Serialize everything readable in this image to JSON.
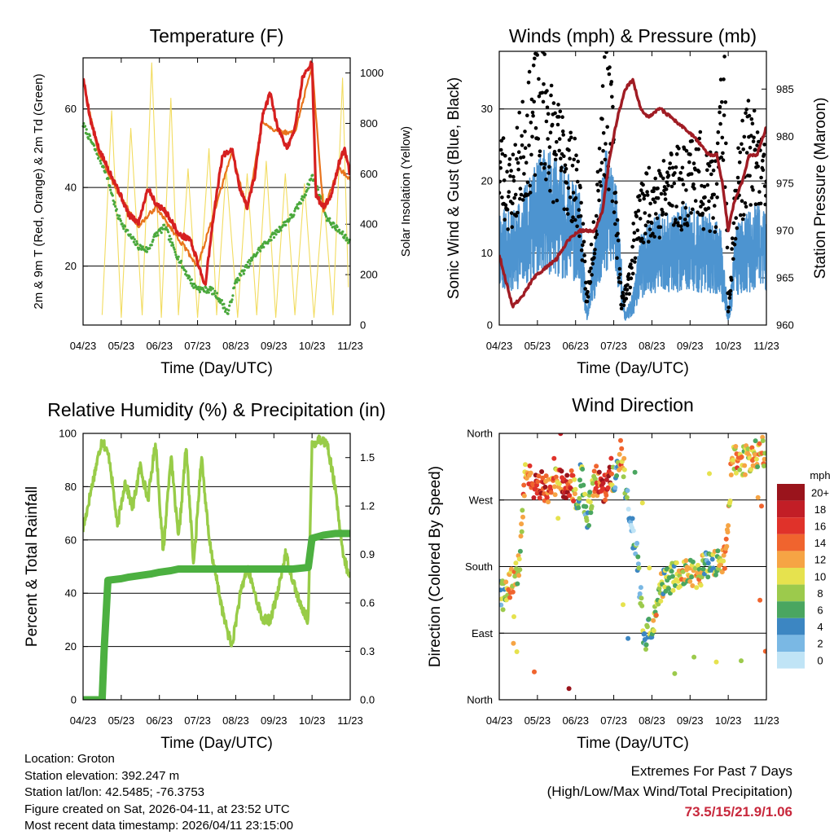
{
  "colors": {
    "temp_2m": "#d62020",
    "temp_9m": "#e8741c",
    "dewpoint": "#4aa83c",
    "solar": "#f2dc60",
    "wind": "#4d94d0",
    "gust": "#000000",
    "pressure": "#a01c24",
    "rh": "#98cc48",
    "precip": "#4cb040",
    "extremes_text": "#c8283c"
  },
  "x_ticks": [
    "04/23",
    "05/23",
    "06/23",
    "07/23",
    "08/23",
    "09/23",
    "10/23",
    "11/23"
  ],
  "info": {
    "location": "Location: Groton",
    "elevation": "Station elevation: 392.247 m",
    "latlon": "Station lat/lon: 42.5485; -76.3753",
    "created": "Figure created on Sat, 2026-04-11, at 23:52 UTC",
    "timestamp": "Most recent data timestamp: 2026/04/11 23:15:00"
  },
  "extremes": {
    "title": "Extremes For Past 7 Days",
    "subtitle": "(High/Low/Max Wind/Total Precipitation)",
    "values": "73.5/15/21.9/1.06"
  },
  "chart_data": [
    {
      "type": "line",
      "title": "Temperature (F)",
      "xlabel": "Time (Day/UTC)",
      "ylabel": "2m & 9m T (Red, Orange) & 2m Td (Green)",
      "ylabel_right": "Solar Insolation (Yellow)",
      "ylim": [
        5,
        73
      ],
      "yticks": [
        20,
        40,
        60
      ],
      "ylim_right": [
        0,
        1060
      ],
      "yticks_right": [
        0,
        200,
        400,
        600,
        800,
        1000
      ],
      "x_range": [
        0,
        7
      ],
      "series": [
        {
          "name": "2m T",
          "color": "#d62020",
          "x": [
            0,
            0.2,
            0.4,
            0.6,
            0.9,
            1.2,
            1.45,
            1.7,
            1.9,
            2.15,
            2.35,
            2.5,
            2.8,
            3.0,
            3.2,
            3.45,
            3.65,
            3.9,
            4.1,
            4.3,
            4.5,
            4.7,
            4.9,
            5.1,
            5.35,
            5.55,
            5.75,
            6.0,
            6.1,
            6.3,
            6.5,
            6.7,
            6.85,
            7.0
          ],
          "values": [
            68,
            57,
            50,
            46,
            40,
            33,
            31,
            40,
            36,
            34,
            31,
            28,
            27,
            21,
            15,
            35,
            48,
            50,
            40,
            35,
            43,
            58,
            64,
            55,
            50,
            55,
            68,
            72,
            38,
            35,
            38,
            46,
            50,
            43
          ]
        },
        {
          "name": "9m T",
          "color": "#e8741c",
          "x": [
            0,
            0.4,
            0.9,
            1.45,
            1.9,
            2.5,
            3.0,
            3.45,
            3.9,
            4.3,
            4.7,
            5.1,
            5.55,
            6.0,
            6.3,
            6.7,
            7.0
          ],
          "values": [
            67,
            49,
            39,
            30,
            35,
            27,
            20,
            34,
            49,
            34,
            57,
            54,
            54,
            71,
            34,
            45,
            42
          ]
        },
        {
          "name": "2m Td",
          "color": "#4aa83c",
          "x": [
            0,
            0.2,
            0.4,
            0.6,
            0.9,
            1.2,
            1.45,
            1.7,
            1.9,
            2.15,
            2.35,
            2.6,
            2.9,
            3.1,
            3.35,
            3.55,
            3.8,
            4.0,
            4.3,
            4.6,
            4.9,
            5.2,
            5.5,
            5.8,
            6.0,
            6.2,
            6.4,
            6.6,
            6.8,
            7.0
          ],
          "values": [
            56,
            52,
            48,
            44,
            33,
            28,
            25,
            24,
            28,
            30,
            25,
            20,
            15,
            14,
            14,
            12,
            8,
            16,
            20,
            24,
            27,
            30,
            33,
            38,
            43,
            38,
            32,
            30,
            28,
            26
          ]
        },
        {
          "name": "Solar Insolation",
          "axis": "right",
          "color": "#f2dc60",
          "x": [
            0.5,
            0.75,
            1.0,
            1.25,
            1.55,
            1.8,
            2.05,
            2.3,
            2.5,
            2.75,
            3.0,
            3.3,
            3.5,
            3.75,
            4.05,
            4.3,
            4.55,
            4.8,
            5.05,
            5.3,
            5.55,
            5.8,
            6.05,
            6.3,
            6.55,
            6.8,
            6.95
          ],
          "values": [
            40,
            850,
            30,
            780,
            40,
            1040,
            30,
            900,
            40,
            620,
            30,
            700,
            40,
            620,
            30,
            600,
            40,
            650,
            30,
            600,
            40,
            560,
            30,
            520,
            40,
            980,
            150
          ]
        }
      ]
    },
    {
      "type": "scatter",
      "title": "Winds (mph) & Pressure (mb)",
      "xlabel": "Time (Day/UTC)",
      "ylabel": "Sonic Wind & Gust (Blue, Black)",
      "ylabel_right": "Station Pressure (Maroon)",
      "ylim": [
        0,
        38
      ],
      "yticks": [
        0,
        10,
        20,
        30
      ],
      "ylim_right": [
        960,
        989
      ],
      "yticks_right": [
        960,
        965,
        970,
        975,
        980,
        985
      ],
      "x_range": [
        0,
        7
      ],
      "series": [
        {
          "name": "Sonic Wind",
          "color": "#4d94d0",
          "x": [
            0,
            0.3,
            0.6,
            0.9,
            1.2,
            1.5,
            1.8,
            2.1,
            2.3,
            2.5,
            2.8,
            3.05,
            3.3,
            3.5,
            3.7,
            3.9,
            4.1,
            4.3,
            4.6,
            4.9,
            5.2,
            5.5,
            5.8,
            6.0,
            6.2,
            6.5,
            6.8,
            7.0
          ],
          "values": [
            11,
            10,
            12,
            14,
            16,
            15,
            14,
            12,
            1,
            8,
            16,
            14,
            1,
            3,
            8,
            9,
            10,
            10,
            10,
            11,
            10,
            10,
            9,
            1,
            9,
            10,
            11,
            10
          ]
        },
        {
          "name": "Gust",
          "color": "#000000",
          "x": [
            0,
            0.3,
            0.6,
            0.9,
            1.1,
            1.3,
            1.5,
            1.8,
            2.1,
            2.3,
            2.5,
            2.75,
            2.95,
            3.2,
            3.4,
            3.6,
            3.8,
            4.0,
            4.25,
            4.5,
            4.8,
            5.1,
            5.4,
            5.7,
            5.9,
            6.0,
            6.2,
            6.5,
            6.8,
            7.0
          ],
          "values": [
            22,
            18,
            24,
            28,
            32,
            27,
            24,
            22,
            18,
            3,
            14,
            30,
            26,
            3,
            6,
            14,
            16,
            18,
            17,
            20,
            19,
            22,
            19,
            18,
            33,
            2,
            18,
            24,
            22,
            19
          ]
        },
        {
          "name": "Station Pressure",
          "axis": "right",
          "color": "#a01c24",
          "x": [
            0,
            0.15,
            0.35,
            0.6,
            0.9,
            1.2,
            1.5,
            1.8,
            2.1,
            2.3,
            2.5,
            2.7,
            2.9,
            3.1,
            3.3,
            3.5,
            3.7,
            3.9,
            4.2,
            4.5,
            4.8,
            5.1,
            5.3,
            5.5,
            5.7,
            5.85,
            6.0,
            6.15,
            6.35,
            6.55,
            6.75,
            7.0
          ],
          "values": [
            967.5,
            965,
            962,
            963,
            965,
            966,
            967,
            969,
            970,
            970,
            970,
            972,
            978,
            982,
            985,
            986,
            983,
            982,
            983,
            982,
            981,
            980,
            979,
            978,
            978,
            975,
            970,
            973,
            975,
            978,
            978,
            981
          ]
        }
      ]
    },
    {
      "type": "line",
      "title": "Relative Humidity (%) & Precipitation (in)",
      "xlabel": "Time (Day/UTC)",
      "ylabel": "Percent & Total Rainfall",
      "ylim": [
        0,
        100
      ],
      "yticks": [
        0,
        20,
        40,
        60,
        80,
        100
      ],
      "ylim_right": [
        0,
        1.65
      ],
      "yticks_right": [
        "0.0",
        "0.3",
        "0.6",
        "0.9",
        "1.2",
        "1.5"
      ],
      "x_range": [
        0,
        7
      ],
      "series": [
        {
          "name": "Relative Humidity",
          "color": "#98cc48",
          "x": [
            0,
            0.3,
            0.5,
            0.7,
            0.9,
            1.1,
            1.3,
            1.5,
            1.7,
            1.9,
            2.1,
            2.3,
            2.5,
            2.7,
            2.9,
            3.1,
            3.3,
            3.5,
            3.7,
            3.9,
            4.1,
            4.3,
            4.5,
            4.7,
            4.9,
            5.1,
            5.3,
            5.5,
            5.7,
            5.9,
            6.0,
            6.2,
            6.4,
            6.6,
            6.8,
            7.0
          ],
          "values": [
            64,
            85,
            98,
            90,
            65,
            82,
            72,
            88,
            75,
            97,
            55,
            92,
            60,
            95,
            50,
            92,
            60,
            45,
            30,
            20,
            38,
            50,
            40,
            30,
            30,
            40,
            55,
            45,
            35,
            30,
            96,
            98,
            96,
            80,
            55,
            45
          ]
        },
        {
          "name": "Total Rainfall",
          "axis": "right",
          "color": "#4cb040",
          "x": [
            0,
            0.5,
            0.55,
            0.65,
            1.0,
            1.2,
            1.5,
            1.8,
            2.0,
            2.3,
            2.5,
            3.0,
            3.5,
            4.0,
            4.5,
            5.0,
            5.5,
            5.9,
            6.0,
            6.3,
            6.6,
            7.0
          ],
          "values": [
            0.0,
            0.0,
            0.3,
            0.74,
            0.75,
            0.76,
            0.77,
            0.78,
            0.79,
            0.8,
            0.81,
            0.81,
            0.81,
            0.81,
            0.81,
            0.81,
            0.81,
            0.82,
            1.0,
            1.02,
            1.03,
            1.03
          ]
        }
      ]
    },
    {
      "type": "scatter",
      "title": "Wind Direction",
      "xlabel": "Time (Day/UTC)",
      "ylabel": "Direction (Colored By Speed)",
      "ylim": [
        0,
        360
      ],
      "ytick_labels": [
        "North",
        "East",
        "South",
        "West",
        "North"
      ],
      "x_range": [
        0,
        7
      ],
      "colorbar": {
        "title": "mph",
        "labels": [
          "20+",
          "18",
          "16",
          "14",
          "12",
          "10",
          "8",
          "6",
          "4",
          "2",
          "0"
        ],
        "colors": [
          "#9a141c",
          "#c21e26",
          "#e0322a",
          "#f0642e",
          "#f6a444",
          "#e6e24e",
          "#9cca4c",
          "#4aa660",
          "#3c86c2",
          "#7ab8e4",
          "#c0e4f6"
        ]
      },
      "series": [
        {
          "name": "Direction",
          "x": [
            0.05,
            0.2,
            0.35,
            0.5,
            0.7,
            0.9,
            1.1,
            1.3,
            1.5,
            1.7,
            1.9,
            2.05,
            2.15,
            2.3,
            2.5,
            2.7,
            2.9,
            3.05,
            3.2,
            3.4,
            3.6,
            3.8,
            4.0,
            4.2,
            4.4,
            4.6,
            4.8,
            5.0,
            5.2,
            5.4,
            5.6,
            5.8,
            5.95,
            6.1,
            6.3,
            6.5,
            6.7,
            6.9
          ],
          "values": [
            140,
            145,
            160,
            175,
            310,
            285,
            290,
            280,
            300,
            290,
            295,
            260,
            310,
            240,
            300,
            280,
            300,
            290,
            340,
            250,
            200,
            80,
            100,
            150,
            160,
            170,
            165,
            175,
            170,
            180,
            185,
            180,
            200,
            330,
            320,
            325,
            330,
            335
          ],
          "speeds": [
            6,
            10,
            12,
            8,
            14,
            16,
            18,
            14,
            12,
            18,
            16,
            4,
            6,
            6,
            12,
            18,
            16,
            2,
            14,
            2,
            4,
            6,
            8,
            10,
            6,
            8,
            10,
            8,
            12,
            6,
            8,
            10,
            12,
            10,
            12,
            8,
            10,
            12
          ]
        }
      ]
    }
  ]
}
